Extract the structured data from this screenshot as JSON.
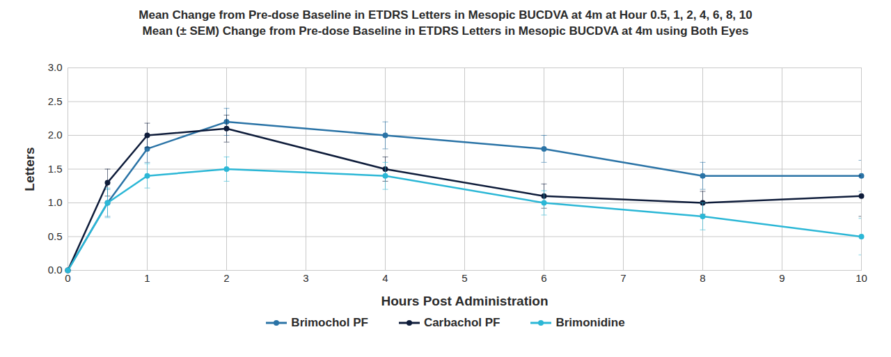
{
  "chart_data": {
    "type": "line",
    "title": "Mean Change from Pre-dose Baseline in ETDRS Letters in Mesopic BUCDVA at 4m at Hour 0.5, 1, 2, 4, 6, 8, 10",
    "subtitle": "Mean (± SEM) Change from Pre-dose Baseline in ETDRS Letters in Mesopic BUCDVA at 4m using Both Eyes",
    "x_label": "Hours Post Administration",
    "y_label": "Letters",
    "x": [
      0,
      0.5,
      1,
      2,
      4,
      6,
      8,
      10
    ],
    "series": [
      {
        "name": "Brimochol PF",
        "color": "#2a73a6",
        "marker": "circle",
        "line_style": "solid",
        "values": [
          0,
          1.0,
          1.8,
          2.2,
          2.0,
          1.8,
          1.4,
          1.4
        ],
        "sem": [
          0,
          0.2,
          0.2,
          0.2,
          0.2,
          0.2,
          0.2,
          0.23
        ]
      },
      {
        "name": "Carbachol PF",
        "color": "#0e1c3a",
        "marker": "circle",
        "line_style": "solid",
        "values": [
          0,
          1.3,
          2.0,
          2.1,
          1.5,
          1.1,
          1.0,
          1.1
        ],
        "sem": [
          0,
          0.2,
          0.18,
          0.2,
          0.18,
          0.18,
          0.17,
          0.3
        ]
      },
      {
        "name": "Brimonidine",
        "color": "#2bb7d6",
        "marker": "circle",
        "line_style": "solid",
        "values": [
          0,
          1.0,
          1.4,
          1.5,
          1.4,
          1.0,
          0.8,
          0.5
        ],
        "sem": [
          0,
          0.22,
          0.18,
          0.18,
          0.2,
          0.18,
          0.2,
          0.27
        ]
      }
    ],
    "xlim": [
      0,
      10
    ],
    "xticks": [
      0,
      1,
      2,
      3,
      4,
      5,
      6,
      7,
      8,
      9,
      10
    ],
    "ylim": [
      0,
      3
    ],
    "yticks": [
      {
        "value": 0,
        "label": "0.0"
      },
      0.5,
      {
        "value": 1,
        "label": "1.0"
      },
      1.5,
      {
        "value": 2,
        "label": "2.0"
      },
      2.5,
      {
        "value": 3,
        "label": "3.0"
      }
    ],
    "grid": true,
    "legend": "bottom"
  }
}
